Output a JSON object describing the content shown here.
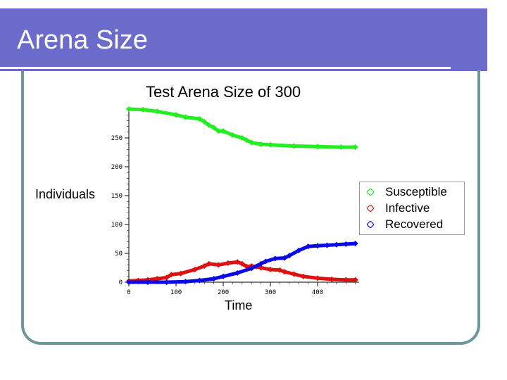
{
  "slide": {
    "title": "Arena Size",
    "title_bar_color": "#6b6bcc",
    "frame_color": "#6e979b"
  },
  "chart_data": {
    "type": "scatter",
    "title": "Test Arena Size of 300",
    "xlabel": "Time",
    "ylabel": "Individuals",
    "xlim": [
      0,
      488
    ],
    "ylim": [
      0,
      300
    ],
    "xticks": [
      0,
      100,
      200,
      300,
      400
    ],
    "yticks": [
      0,
      50,
      100,
      150,
      200,
      250
    ],
    "grid": false,
    "legend_placement": "right",
    "series": [
      {
        "name": "Susceptible",
        "color": "#22ee22",
        "x": [
          0,
          30,
          60,
          100,
          120,
          150,
          160,
          170,
          180,
          190,
          200,
          220,
          240,
          250,
          260,
          280,
          300,
          350,
          400,
          450,
          480
        ],
        "y": [
          300,
          299,
          296,
          290,
          286,
          283,
          278,
          272,
          268,
          262,
          262,
          255,
          250,
          246,
          242,
          239,
          238,
          236,
          235,
          234,
          234
        ]
      },
      {
        "name": "Infective",
        "color": "#dd1111",
        "x": [
          0,
          20,
          40,
          60,
          80,
          90,
          110,
          140,
          160,
          170,
          190,
          210,
          230,
          240,
          250,
          260,
          270,
          280,
          300,
          320,
          330,
          350,
          370,
          400,
          430,
          460,
          480
        ],
        "y": [
          2,
          3,
          4,
          6,
          8,
          13,
          15,
          22,
          28,
          32,
          30,
          33,
          35,
          32,
          27,
          28,
          27,
          25,
          22,
          21,
          18,
          14,
          10,
          7,
          5,
          4,
          4
        ]
      },
      {
        "name": "Recovered",
        "color": "#0a0ae6",
        "x": [
          0,
          40,
          80,
          120,
          150,
          180,
          200,
          230,
          260,
          280,
          290,
          310,
          330,
          340,
          360,
          380,
          400,
          420,
          440,
          460,
          480
        ],
        "y": [
          0,
          0,
          0,
          1,
          3,
          6,
          10,
          16,
          24,
          32,
          36,
          41,
          42,
          46,
          55,
          62,
          63,
          64,
          65,
          66,
          67
        ]
      }
    ]
  }
}
